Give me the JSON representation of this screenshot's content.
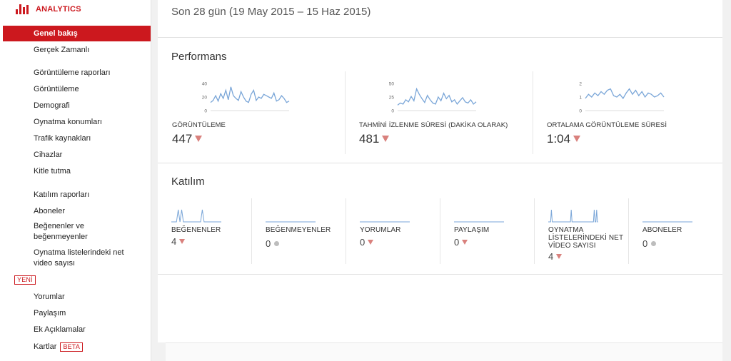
{
  "brand": {
    "label": "ANALYTICS",
    "icon": "bar-chart-icon",
    "color": "#cc181e"
  },
  "sidebar": {
    "items": [
      {
        "label": "Genel bakış",
        "active": true
      },
      {
        "label": "Gerçek Zamanlı"
      },
      {
        "label": "Görüntüleme raporları"
      },
      {
        "label": "Görüntüleme"
      },
      {
        "label": "Demografi"
      },
      {
        "label": "Oynatma konumları"
      },
      {
        "label": "Trafik kaynakları"
      },
      {
        "label": "Cihazlar"
      },
      {
        "label": "Kitle tutma"
      },
      {
        "label": "Katılım raporları"
      },
      {
        "label": "Aboneler"
      },
      {
        "label": "Beğenenler ve beğenmeyenler"
      },
      {
        "label": "Oynatma listelerindeki net video sayısı"
      },
      {
        "label": "Yorumlar"
      },
      {
        "label": "Paylaşım"
      },
      {
        "label": "Ek Açıklamalar"
      },
      {
        "label": "Kartlar"
      }
    ],
    "badge_new": "YENİ",
    "badge_beta": "BETA"
  },
  "header": {
    "date_range": "Son 28 gün (19 May 2015 – 15 Haz 2015)"
  },
  "performance": {
    "title": "Performans",
    "metrics": [
      {
        "label": "GÖRÜNTÜLEME",
        "value": "447",
        "trend": "down",
        "y_ticks": [
          "40",
          "20",
          "0"
        ],
        "y_max": 40,
        "series": [
          12,
          15,
          22,
          14,
          25,
          18,
          30,
          16,
          35,
          22,
          18,
          15,
          28,
          20,
          14,
          12,
          24,
          30,
          15,
          20,
          18,
          24,
          22,
          20,
          18,
          26,
          14,
          16,
          22,
          18,
          12,
          14
        ]
      },
      {
        "label": "TAHMİNİ İZLENME SÜRESİ (DAKİKA OLARAK)",
        "value": "481",
        "trend": "down",
        "y_ticks": [
          "50",
          "25",
          "0"
        ],
        "y_max": 50,
        "series": [
          10,
          14,
          12,
          20,
          16,
          26,
          18,
          40,
          30,
          22,
          15,
          28,
          20,
          14,
          12,
          25,
          18,
          32,
          22,
          28,
          16,
          20,
          12,
          18,
          24,
          16,
          14,
          20,
          12,
          16
        ]
      },
      {
        "label": "ORTALAMA GÖRÜNTÜLEME SÜRESİ",
        "value": "1:04",
        "trend": "down",
        "y_ticks": [
          "2",
          "1",
          "0"
        ],
        "y_max": 2,
        "series": [
          0.9,
          1.2,
          1.0,
          1.3,
          1.1,
          1.4,
          1.2,
          1.5,
          1.6,
          1.1,
          1.0,
          1.2,
          0.9,
          1.3,
          1.6,
          1.2,
          1.5,
          1.1,
          1.4,
          1.0,
          1.3,
          1.2,
          1.0,
          1.1,
          1.3,
          1.0
        ]
      }
    ]
  },
  "engagement": {
    "title": "Katılım",
    "metrics": [
      {
        "label": "BEĞENENLER",
        "value": "4",
        "indicator": "down",
        "sparkline": [
          0,
          0,
          0,
          0,
          1,
          0,
          1,
          0,
          0,
          0,
          0,
          0,
          0,
          0,
          0,
          0,
          0,
          0,
          1,
          0,
          0,
          0,
          0,
          0,
          0,
          0,
          0,
          0,
          0,
          0
        ]
      },
      {
        "label": "BEĞENMEYENLER",
        "value": "0",
        "indicator": "neutral",
        "sparkline": []
      },
      {
        "label": "YORUMLAR",
        "value": "0",
        "indicator": "down",
        "sparkline": []
      },
      {
        "label": "PAYLAŞIM",
        "value": "0",
        "indicator": "down",
        "sparkline": []
      },
      {
        "label": "OYNATMA LİSTELERİNDEKİ NET VİDEO SAYISI",
        "value": "4",
        "indicator": "down",
        "sparkline": [
          0,
          0,
          0,
          0,
          1,
          0,
          0,
          0,
          0,
          0,
          0,
          0,
          0,
          0,
          0,
          0,
          0,
          0,
          0,
          0,
          0,
          0,
          0,
          0,
          0,
          0,
          0,
          0,
          0,
          1,
          0,
          0,
          0,
          0,
          0,
          0,
          0,
          0,
          0,
          0,
          0,
          0,
          0,
          0,
          0,
          0,
          0,
          0,
          0,
          0,
          0,
          0,
          0,
          0,
          0,
          0,
          0,
          0,
          1,
          0,
          0,
          1,
          0,
          0
        ]
      },
      {
        "label": "ABONELER",
        "value": "0",
        "indicator": "neutral",
        "sparkline": []
      }
    ]
  },
  "colors": {
    "line": "#7aa6d8",
    "down": "#d9817d",
    "neutral": "#bdbdbd",
    "accent": "#cc181e"
  }
}
